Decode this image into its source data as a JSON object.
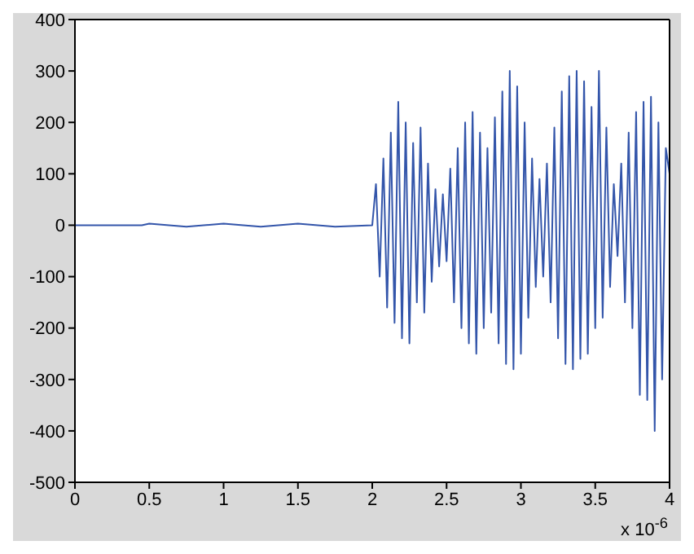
{
  "chart_data": {
    "type": "line",
    "x": [
      0,
      0.45,
      0.5,
      0.75,
      1,
      1.25,
      1.5,
      1.75,
      2,
      2.025,
      2.05,
      2.075,
      2.1,
      2.125,
      2.15,
      2.175,
      2.2,
      2.225,
      2.25,
      2.275,
      2.3,
      2.325,
      2.35,
      2.375,
      2.4,
      2.425,
      2.45,
      2.475,
      2.5,
      2.525,
      2.55,
      2.575,
      2.6,
      2.625,
      2.65,
      2.675,
      2.7,
      2.725,
      2.75,
      2.775,
      2.8,
      2.825,
      2.85,
      2.875,
      2.9,
      2.925,
      2.95,
      2.975,
      3,
      3.025,
      3.05,
      3.075,
      3.1,
      3.125,
      3.15,
      3.175,
      3.2,
      3.225,
      3.25,
      3.275,
      3.3,
      3.325,
      3.35,
      3.375,
      3.4,
      3.425,
      3.45,
      3.475,
      3.5,
      3.525,
      3.55,
      3.575,
      3.6,
      3.625,
      3.65,
      3.675,
      3.7,
      3.725,
      3.75,
      3.775,
      3.8,
      3.825,
      3.85,
      3.875,
      3.9,
      3.925,
      3.95,
      3.975,
      4
    ],
    "series": [
      {
        "color": "#3355aa",
        "values": [
          0,
          0,
          3,
          -3,
          3,
          -3,
          3,
          -3,
          0,
          80,
          -100,
          130,
          -160,
          180,
          -190,
          240,
          -220,
          200,
          -230,
          160,
          -150,
          190,
          -170,
          120,
          -110,
          70,
          -80,
          60,
          -70,
          110,
          -150,
          150,
          -200,
          200,
          -230,
          220,
          -250,
          180,
          -200,
          150,
          -170,
          210,
          -230,
          260,
          -270,
          300,
          -280,
          270,
          -250,
          200,
          -180,
          130,
          -120,
          90,
          -100,
          120,
          -150,
          190,
          -220,
          260,
          -270,
          290,
          -280,
          300,
          -260,
          280,
          -250,
          230,
          -200,
          300,
          -180,
          190,
          -120,
          80,
          -60,
          120,
          -150,
          180,
          -200,
          220,
          -330,
          240,
          -340,
          250,
          -400,
          200,
          -300,
          150,
          100
        ]
      }
    ],
    "xlim": [
      0,
      4
    ],
    "xticks": [
      0,
      0.5,
      1,
      1.5,
      2,
      2.5,
      3,
      3.5,
      4
    ],
    "ylim": [
      -500,
      400
    ],
    "yticks": [
      -500,
      -400,
      -300,
      -200,
      -100,
      0,
      100,
      200,
      300,
      400
    ],
    "grid": false,
    "legend": false,
    "marker": "none",
    "line_style": "solid",
    "annotations": [
      "x 10$^{-6}$"
    ]
  }
}
